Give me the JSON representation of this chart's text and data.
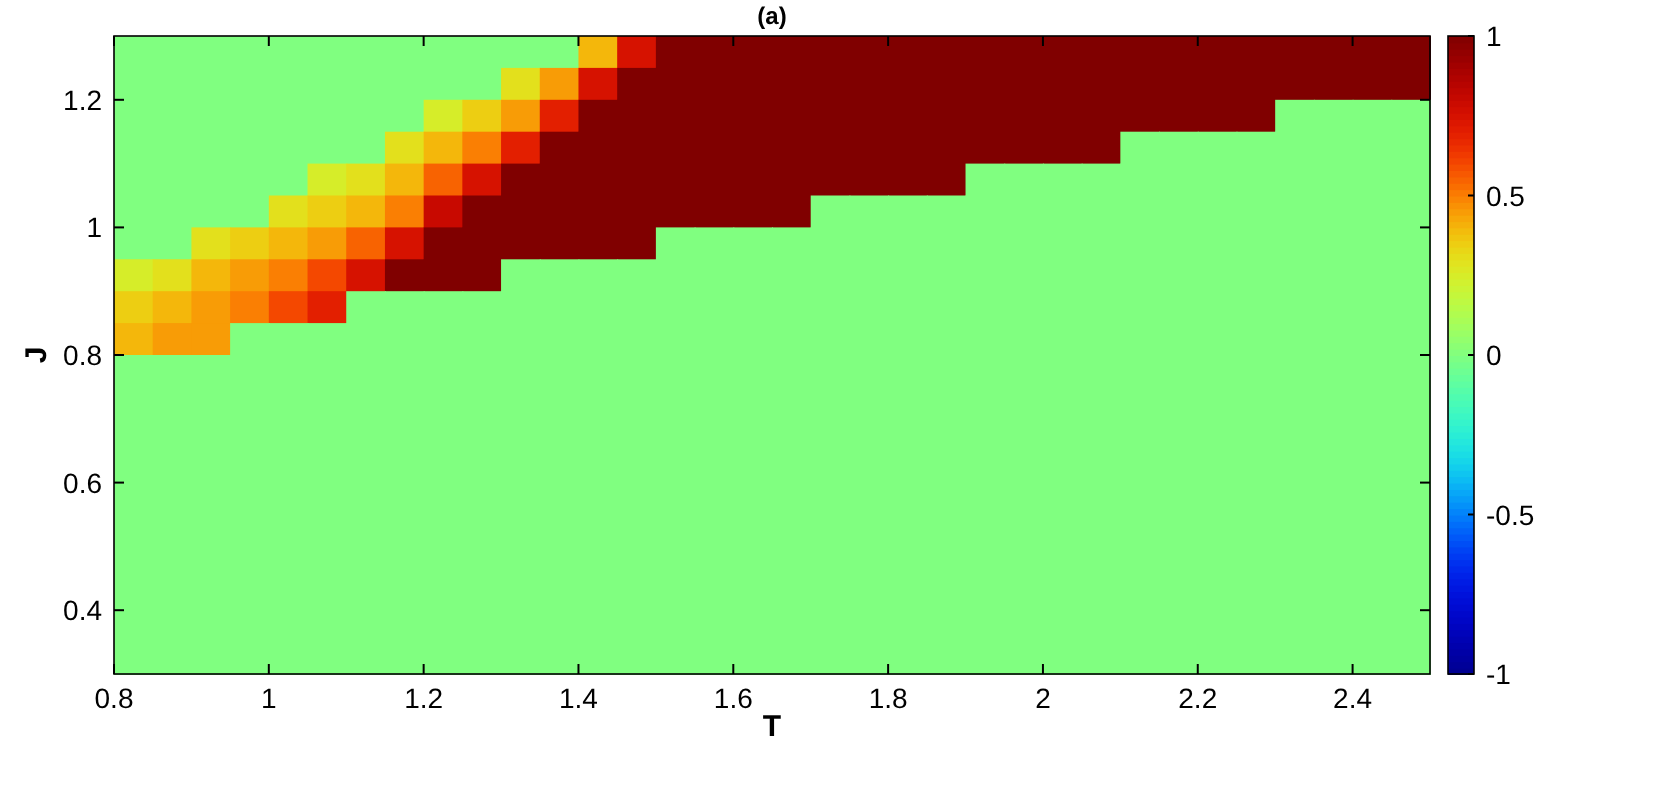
{
  "chart_data": {
    "type": "heatmap",
    "title": "(a)",
    "xlabel": "T",
    "ylabel": "J",
    "xlim": [
      0.8,
      2.5
    ],
    "xticks": [
      0.8,
      1,
      1.2,
      1.4,
      1.6,
      1.8,
      2,
      2.2,
      2.4
    ],
    "ylim": [
      0.3,
      1.3
    ],
    "yticks": [
      0.4,
      0.6,
      0.8,
      1,
      1.2
    ],
    "clim": [
      -1,
      1
    ],
    "cticks": [
      -1,
      -0.5,
      0,
      0.5,
      1
    ],
    "cells": [
      [
        0,
        0,
        0,
        0,
        0,
        0,
        0,
        0,
        0,
        0,
        0,
        0,
        0.4,
        0.75,
        1,
        1,
        1,
        1,
        1,
        1,
        1,
        1,
        1,
        1,
        1,
        1,
        1,
        1,
        1,
        1,
        1,
        1,
        1,
        1
      ],
      [
        0,
        0,
        0,
        0,
        0,
        0,
        0,
        0,
        0,
        0,
        0.3,
        0.45,
        0.75,
        1,
        1,
        1,
        1,
        1,
        1,
        1,
        1,
        1,
        1,
        1,
        1,
        1,
        1,
        1,
        1,
        1,
        1,
        1,
        1,
        1
      ],
      [
        0,
        0,
        0,
        0,
        0,
        0,
        0,
        0,
        0.25,
        0.35,
        0.45,
        0.7,
        1,
        1,
        1,
        1,
        1,
        1,
        1,
        1,
        1,
        1,
        1,
        1,
        1,
        1,
        1,
        1,
        1,
        1,
        0,
        0,
        0,
        0
      ],
      [
        0,
        0,
        0,
        0,
        0,
        0,
        0,
        0.3,
        0.4,
        0.5,
        0.7,
        1,
        1,
        1,
        1,
        1,
        1,
        1,
        1,
        1,
        1,
        1,
        1,
        1,
        1,
        1,
        0,
        0,
        0,
        0,
        0,
        0,
        0,
        0
      ],
      [
        0,
        0,
        0,
        0,
        0,
        0.25,
        0.3,
        0.4,
        0.55,
        0.75,
        1,
        1,
        1,
        1,
        1,
        1,
        1,
        1,
        1,
        1,
        1,
        1,
        0,
        0,
        0,
        0,
        0,
        0,
        0,
        0,
        0,
        0,
        0,
        0
      ],
      [
        0,
        0,
        0,
        0,
        0.3,
        0.35,
        0.4,
        0.5,
        0.8,
        1,
        1,
        1,
        1,
        1,
        1,
        1,
        1,
        1,
        0,
        0,
        0,
        0,
        0,
        0,
        0,
        0,
        0,
        0,
        0,
        0,
        0,
        0,
        0,
        0
      ],
      [
        0,
        0,
        0.3,
        0.35,
        0.4,
        0.45,
        0.55,
        0.75,
        1,
        1,
        1,
        1,
        1,
        1,
        0,
        0,
        0,
        0,
        0,
        0,
        0,
        0,
        0,
        0,
        0,
        0,
        0,
        0,
        0,
        0,
        0,
        0,
        0,
        0
      ],
      [
        0.25,
        0.3,
        0.4,
        0.45,
        0.5,
        0.6,
        0.75,
        1,
        1,
        1,
        0,
        0,
        0,
        0,
        0,
        0,
        0,
        0,
        0,
        0,
        0,
        0,
        0,
        0,
        0,
        0,
        0,
        0,
        0,
        0,
        0,
        0,
        0,
        0
      ],
      [
        0.35,
        0.4,
        0.45,
        0.5,
        0.6,
        0.7,
        0,
        0,
        0,
        0,
        0,
        0,
        0,
        0,
        0,
        0,
        0,
        0,
        0,
        0,
        0,
        0,
        0,
        0,
        0,
        0,
        0,
        0,
        0,
        0,
        0,
        0,
        0,
        0
      ],
      [
        0.4,
        0.45,
        0.45,
        0,
        0,
        0,
        0,
        0,
        0,
        0,
        0,
        0,
        0,
        0,
        0,
        0,
        0,
        0,
        0,
        0,
        0,
        0,
        0,
        0,
        0,
        0,
        0,
        0,
        0,
        0,
        0,
        0,
        0,
        0
      ],
      [
        0,
        0,
        0,
        0,
        0,
        0,
        0,
        0,
        0,
        0,
        0,
        0,
        0,
        0,
        0,
        0,
        0,
        0,
        0,
        0,
        0,
        0,
        0,
        0,
        0,
        0,
        0,
        0,
        0,
        0,
        0,
        0,
        0,
        0
      ],
      [
        0,
        0,
        0,
        0,
        0,
        0,
        0,
        0,
        0,
        0,
        0,
        0,
        0,
        0,
        0,
        0,
        0,
        0,
        0,
        0,
        0,
        0,
        0,
        0,
        0,
        0,
        0,
        0,
        0,
        0,
        0,
        0,
        0,
        0
      ],
      [
        0,
        0,
        0,
        0,
        0,
        0,
        0,
        0,
        0,
        0,
        0,
        0,
        0,
        0,
        0,
        0,
        0,
        0,
        0,
        0,
        0,
        0,
        0,
        0,
        0,
        0,
        0,
        0,
        0,
        0,
        0,
        0,
        0,
        0
      ],
      [
        0,
        0,
        0,
        0,
        0,
        0,
        0,
        0,
        0,
        0,
        0,
        0,
        0,
        0,
        0,
        0,
        0,
        0,
        0,
        0,
        0,
        0,
        0,
        0,
        0,
        0,
        0,
        0,
        0,
        0,
        0,
        0,
        0,
        0
      ],
      [
        0,
        0,
        0,
        0,
        0,
        0,
        0,
        0,
        0,
        0,
        0,
        0,
        0,
        0,
        0,
        0,
        0,
        0,
        0,
        0,
        0,
        0,
        0,
        0,
        0,
        0,
        0,
        0,
        0,
        0,
        0,
        0,
        0,
        0
      ],
      [
        0,
        0,
        0,
        0,
        0,
        0,
        0,
        0,
        0,
        0,
        0,
        0,
        0,
        0,
        0,
        0,
        0,
        0,
        0,
        0,
        0,
        0,
        0,
        0,
        0,
        0,
        0,
        0,
        0,
        0,
        0,
        0,
        0,
        0
      ],
      [
        0,
        0,
        0,
        0,
        0,
        0,
        0,
        0,
        0,
        0,
        0,
        0,
        0,
        0,
        0,
        0,
        0,
        0,
        0,
        0,
        0,
        0,
        0,
        0,
        0,
        0,
        0,
        0,
        0,
        0,
        0,
        0,
        0,
        0
      ],
      [
        0,
        0,
        0,
        0,
        0,
        0,
        0,
        0,
        0,
        0,
        0,
        0,
        0,
        0,
        0,
        0,
        0,
        0,
        0,
        0,
        0,
        0,
        0,
        0,
        0,
        0,
        0,
        0,
        0,
        0,
        0,
        0,
        0,
        0
      ],
      [
        0,
        0,
        0,
        0,
        0,
        0,
        0,
        0,
        0,
        0,
        0,
        0,
        0,
        0,
        0,
        0,
        0,
        0,
        0,
        0,
        0,
        0,
        0,
        0,
        0,
        0,
        0,
        0,
        0,
        0,
        0,
        0,
        0,
        0
      ],
      [
        0,
        0,
        0,
        0,
        0,
        0,
        0,
        0,
        0,
        0,
        0,
        0,
        0,
        0,
        0,
        0,
        0,
        0,
        0,
        0,
        0,
        0,
        0,
        0,
        0,
        0,
        0,
        0,
        0,
        0,
        0,
        0,
        0,
        0
      ]
    ]
  }
}
